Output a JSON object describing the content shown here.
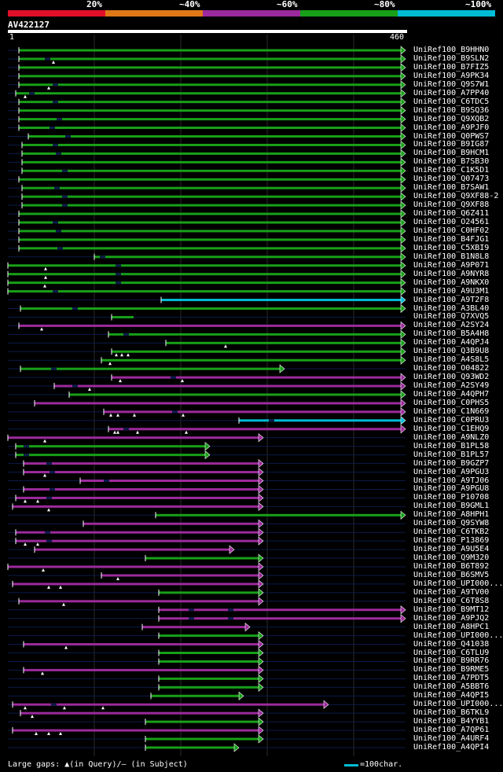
{
  "legend": {
    "labels": [
      "20%",
      "~40%",
      "~60%",
      "~80%",
      "~100%"
    ],
    "colors": [
      "#e0102a",
      "#e07818",
      "#9c2a9c",
      "#18a018",
      "#00bcd4"
    ]
  },
  "query": {
    "id": "AV422127",
    "length": 460,
    "start_label": "1",
    "end_label": "460"
  },
  "footer": {
    "gaps_text": "Large gaps: ▲(in Query)/— (in Subject)",
    "scale_text": "=100char."
  },
  "hits": [
    {
      "label": "UniRef100_B9HHN0",
      "color": "green",
      "start": 24,
      "end": 516,
      "arrow": true,
      "query_gaps": [],
      "subj_gaps": []
    },
    {
      "label": "UniRef100_B9SLN2",
      "color": "green",
      "start": 24,
      "end": 516,
      "arrow": true,
      "query_gaps": [
        68
      ],
      "subj_gaps": [
        60
      ]
    },
    {
      "label": "UniRef100_B7FIZ5",
      "color": "green",
      "start": 24,
      "end": 516,
      "arrow": true,
      "query_gaps": [],
      "subj_gaps": []
    },
    {
      "label": "UniRef100_A9PK34",
      "color": "green",
      "start": 24,
      "end": 516,
      "arrow": true,
      "query_gaps": [],
      "subj_gaps": []
    },
    {
      "label": "UniRef100_Q9S7W1",
      "color": "green",
      "start": 24,
      "end": 516,
      "arrow": true,
      "query_gaps": [
        62
      ],
      "subj_gaps": [
        70
      ]
    },
    {
      "label": "UniRef100_A7PP40",
      "color": "green",
      "start": 20,
      "end": 516,
      "arrow": true,
      "query_gaps": [
        32
      ],
      "subj_gaps": [
        40
      ]
    },
    {
      "label": "UniRef100_C6TDC5",
      "color": "green",
      "start": 24,
      "end": 516,
      "arrow": true,
      "query_gaps": [],
      "subj_gaps": [
        70
      ]
    },
    {
      "label": "UniRef100_B9SQ36",
      "color": "green",
      "start": 24,
      "end": 516,
      "arrow": true,
      "query_gaps": [],
      "subj_gaps": []
    },
    {
      "label": "UniRef100_Q9XQB2",
      "color": "green",
      "start": 24,
      "end": 516,
      "arrow": true,
      "query_gaps": [],
      "subj_gaps": [
        75
      ]
    },
    {
      "label": "UniRef100_A9PJF0",
      "color": "green",
      "start": 24,
      "end": 516,
      "arrow": true,
      "query_gaps": [],
      "subj_gaps": [
        66
      ]
    },
    {
      "label": "UniRef100_Q0PWS7",
      "color": "green",
      "start": 36,
      "end": 516,
      "arrow": true,
      "query_gaps": [],
      "subj_gaps": [
        86
      ]
    },
    {
      "label": "UniRef100_B9IG87",
      "color": "green",
      "start": 28,
      "end": 516,
      "arrow": true,
      "query_gaps": [],
      "subj_gaps": [
        70
      ]
    },
    {
      "label": "UniRef100_B9HCM1",
      "color": "green",
      "start": 28,
      "end": 516,
      "arrow": true,
      "query_gaps": [],
      "subj_gaps": [
        74
      ]
    },
    {
      "label": "UniRef100_B7SB30",
      "color": "green",
      "start": 28,
      "end": 516,
      "arrow": true,
      "query_gaps": [],
      "subj_gaps": []
    },
    {
      "label": "UniRef100_C1K5D1",
      "color": "green",
      "start": 28,
      "end": 516,
      "arrow": true,
      "query_gaps": [],
      "subj_gaps": [
        82
      ]
    },
    {
      "label": "UniRef100_Q07473",
      "color": "green",
      "start": 24,
      "end": 516,
      "arrow": true,
      "query_gaps": [],
      "subj_gaps": []
    },
    {
      "label": "UniRef100_B7SAW1",
      "color": "green",
      "start": 28,
      "end": 516,
      "arrow": true,
      "query_gaps": [],
      "subj_gaps": [
        72
      ]
    },
    {
      "label": "UniRef100_Q9XF88-2",
      "color": "green",
      "start": 28,
      "end": 516,
      "arrow": true,
      "query_gaps": [],
      "subj_gaps": [
        82
      ]
    },
    {
      "label": "UniRef100_Q9XF88",
      "color": "green",
      "start": 28,
      "end": 516,
      "arrow": true,
      "query_gaps": [],
      "subj_gaps": [
        82
      ]
    },
    {
      "label": "UniRef100_Q6Z411",
      "color": "green",
      "start": 24,
      "end": 516,
      "arrow": true,
      "query_gaps": [],
      "subj_gaps": []
    },
    {
      "label": "UniRef100_O24561",
      "color": "green",
      "start": 24,
      "end": 516,
      "arrow": true,
      "query_gaps": [],
      "subj_gaps": [
        70
      ]
    },
    {
      "label": "UniRef100_C0HF02",
      "color": "green",
      "start": 24,
      "end": 516,
      "arrow": true,
      "query_gaps": [],
      "subj_gaps": [
        74
      ]
    },
    {
      "label": "UniRef100_B4FJG1",
      "color": "green",
      "start": 24,
      "end": 516,
      "arrow": true,
      "query_gaps": [],
      "subj_gaps": []
    },
    {
      "label": "UniRef100_C5XBI9",
      "color": "green",
      "start": 24,
      "end": 516,
      "arrow": true,
      "query_gaps": [],
      "subj_gaps": [
        76
      ]
    },
    {
      "label": "UniRef100_B1N8L8",
      "color": "green",
      "start": 120,
      "end": 516,
      "arrow": true,
      "query_gaps": [],
      "subj_gaps": [
        130
      ]
    },
    {
      "label": "UniRef100_A9P071",
      "color": "green",
      "start": 10,
      "end": 516,
      "arrow": true,
      "query_gaps": [
        58
      ],
      "subj_gaps": [
        150
      ]
    },
    {
      "label": "UniRef100_A9NYR8",
      "color": "green",
      "start": 10,
      "end": 516,
      "arrow": true,
      "query_gaps": [
        58
      ],
      "subj_gaps": [
        150
      ]
    },
    {
      "label": "UniRef100_A9NKX0",
      "color": "green",
      "start": 10,
      "end": 516,
      "arrow": true,
      "query_gaps": [
        57
      ],
      "subj_gaps": [
        150
      ]
    },
    {
      "label": "UniRef100_A9U3M1",
      "color": "green",
      "start": 10,
      "end": 516,
      "arrow": true,
      "query_gaps": [],
      "subj_gaps": [
        70
      ]
    },
    {
      "label": "UniRef100_A9T2F8",
      "color": "cyan",
      "start": 205,
      "end": 516,
      "arrow": true,
      "query_gaps": [],
      "subj_gaps": []
    },
    {
      "label": "UniRef100_A3BL40",
      "color": "green",
      "start": 26,
      "end": 516,
      "arrow": true,
      "query_gaps": [],
      "subj_gaps": [
        95
      ]
    },
    {
      "label": "UniRef100_Q7XVQ5",
      "color": "green",
      "start": 142,
      "end": 170,
      "arrow": false,
      "query_gaps": [],
      "subj_gaps": []
    },
    {
      "label": "UniRef100_A2SY24",
      "color": "magenta",
      "start": 24,
      "end": 516,
      "arrow": true,
      "query_gaps": [
        53
      ],
      "subj_gaps": []
    },
    {
      "label": "UniRef100_B5A4H8",
      "color": "green",
      "start": 138,
      "end": 516,
      "arrow": true,
      "query_gaps": [],
      "subj_gaps": [
        160
      ]
    },
    {
      "label": "UniRef100_A4QPJ4",
      "color": "green",
      "start": 211,
      "end": 516,
      "arrow": true,
      "query_gaps": [
        287
      ],
      "subj_gaps": []
    },
    {
      "label": "UniRef100_Q3B9U8",
      "color": "green",
      "start": 142,
      "end": 516,
      "arrow": true,
      "query_gaps": [
        148,
        155,
        163
      ],
      "subj_gaps": []
    },
    {
      "label": "UniRef100_A4S8L5",
      "color": "green",
      "start": 129,
      "end": 516,
      "arrow": true,
      "query_gaps": [
        140
      ],
      "subj_gaps": []
    },
    {
      "label": "UniRef100_O04822",
      "color": "green",
      "start": 26,
      "end": 362,
      "arrow": true,
      "query_gaps": [],
      "subj_gaps": [
        68
      ]
    },
    {
      "label": "UniRef100_Q93WD2",
      "color": "magenta",
      "start": 142,
      "end": 516,
      "arrow": true,
      "query_gaps": [
        153,
        232
      ],
      "subj_gaps": [
        220
      ]
    },
    {
      "label": "UniRef100_A2SY49",
      "color": "magenta",
      "start": 69,
      "end": 516,
      "arrow": true,
      "query_gaps": [
        114
      ],
      "subj_gaps": [
        95
      ]
    },
    {
      "label": "UniRef100_A4QPH7",
      "color": "green",
      "start": 88,
      "end": 516,
      "arrow": true,
      "query_gaps": [],
      "subj_gaps": []
    },
    {
      "label": "UniRef100_C0PHS5",
      "color": "magenta",
      "start": 44,
      "end": 516,
      "arrow": true,
      "query_gaps": [],
      "subj_gaps": []
    },
    {
      "label": "UniRef100_C1N669",
      "color": "magenta",
      "start": 132,
      "end": 516,
      "arrow": true,
      "query_gaps": [
        141,
        150,
        171,
        233
      ],
      "subj_gaps": [
        222
      ]
    },
    {
      "label": "UniRef100_C0PRU3",
      "color": "cyan",
      "start": 304,
      "end": 516,
      "arrow": true,
      "query_gaps": [],
      "subj_gaps": [
        345
      ]
    },
    {
      "label": "UniRef100_C1EHQ9",
      "color": "magenta",
      "start": 138,
      "end": 516,
      "arrow": true,
      "query_gaps": [
        146,
        150,
        175,
        237
      ],
      "subj_gaps": [
        160
      ]
    },
    {
      "label": "UniRef100_A9NLZ0",
      "color": "magenta",
      "start": 10,
      "end": 335,
      "arrow": true,
      "query_gaps": [
        57
      ],
      "subj_gaps": []
    },
    {
      "label": "UniRef100_B1PL58",
      "color": "green",
      "start": 20,
      "end": 267,
      "arrow": true,
      "query_gaps": [],
      "subj_gaps": [
        33
      ]
    },
    {
      "label": "UniRef100_B1PL57",
      "color": "green",
      "start": 20,
      "end": 267,
      "arrow": true,
      "query_gaps": [],
      "subj_gaps": [
        33
      ]
    },
    {
      "label": "UniRef100_B9GZP7",
      "color": "magenta",
      "start": 30,
      "end": 335,
      "arrow": true,
      "query_gaps": [],
      "subj_gaps": [
        62
      ]
    },
    {
      "label": "UniRef100_A9PGU3",
      "color": "magenta",
      "start": 30,
      "end": 335,
      "arrow": true,
      "query_gaps": [
        57
      ],
      "subj_gaps": [
        66
      ]
    },
    {
      "label": "UniRef100_A9TJ06",
      "color": "magenta",
      "start": 102,
      "end": 335,
      "arrow": true,
      "query_gaps": [],
      "subj_gaps": [
        135
      ]
    },
    {
      "label": "UniRef100_A9PGU8",
      "color": "magenta",
      "start": 30,
      "end": 335,
      "arrow": true,
      "query_gaps": [],
      "subj_gaps": [
        66
      ]
    },
    {
      "label": "UniRef100_P10708",
      "color": "magenta",
      "start": 20,
      "end": 335,
      "arrow": true,
      "query_gaps": [
        32,
        48
      ],
      "subj_gaps": [
        62
      ]
    },
    {
      "label": "UniRef100_B9GML1",
      "color": "magenta",
      "start": 16,
      "end": 335,
      "arrow": true,
      "query_gaps": [
        62
      ],
      "subj_gaps": []
    },
    {
      "label": "UniRef100_A8HPH1",
      "color": "green",
      "start": 198,
      "end": 516,
      "arrow": true,
      "query_gaps": [],
      "subj_gaps": []
    },
    {
      "label": "UniRef100_Q9SYW8",
      "color": "magenta",
      "start": 106,
      "end": 335,
      "arrow": true,
      "query_gaps": [],
      "subj_gaps": []
    },
    {
      "label": "UniRef100_C6TKB2",
      "color": "magenta",
      "start": 20,
      "end": 335,
      "arrow": true,
      "query_gaps": [],
      "subj_gaps": [
        60
      ]
    },
    {
      "label": "UniRef100_P13869",
      "color": "magenta",
      "start": 20,
      "end": 335,
      "arrow": true,
      "query_gaps": [
        32,
        48
      ],
      "subj_gaps": [
        62
      ]
    },
    {
      "label": "UniRef100_A9U5E4",
      "color": "magenta",
      "start": 44,
      "end": 298,
      "arrow": true,
      "query_gaps": [],
      "subj_gaps": []
    },
    {
      "label": "UniRef100_Q9M320",
      "color": "green",
      "start": 185,
      "end": 335,
      "arrow": true,
      "query_gaps": [],
      "subj_gaps": []
    },
    {
      "label": "UniRef100_B6T892",
      "color": "magenta",
      "start": 10,
      "end": 335,
      "arrow": true,
      "query_gaps": [
        55
      ],
      "subj_gaps": []
    },
    {
      "label": "UniRef100_B6SMV5",
      "color": "magenta",
      "start": 129,
      "end": 335,
      "arrow": true,
      "query_gaps": [
        150
      ],
      "subj_gaps": []
    },
    {
      "label": "UniRef100_UPI000...",
      "color": "magenta",
      "start": 16,
      "end": 335,
      "arrow": true,
      "query_gaps": [
        62,
        77
      ],
      "subj_gaps": []
    },
    {
      "label": "UniRef100_A9TV00",
      "color": "green",
      "start": 202,
      "end": 335,
      "arrow": true,
      "query_gaps": [],
      "subj_gaps": []
    },
    {
      "label": "UniRef100_C6T8S8",
      "color": "magenta",
      "start": 24,
      "end": 335,
      "arrow": true,
      "query_gaps": [
        81
      ],
      "subj_gaps": []
    },
    {
      "label": "UniRef100_B9MT12",
      "color": "magenta",
      "start": 202,
      "end": 516,
      "arrow": true,
      "query_gaps": [],
      "subj_gaps": [
        243,
        293
      ]
    },
    {
      "label": "UniRef100_A9PJQ2",
      "color": "magenta",
      "start": 202,
      "end": 516,
      "arrow": true,
      "query_gaps": [],
      "subj_gaps": [
        243,
        293
      ]
    },
    {
      "label": "UniRef100_A8HPC1",
      "color": "magenta",
      "start": 181,
      "end": 318,
      "arrow": true,
      "query_gaps": [],
      "subj_gaps": []
    },
    {
      "label": "UniRef100_UPI000...",
      "color": "green",
      "start": 202,
      "end": 335,
      "arrow": true,
      "query_gaps": [],
      "subj_gaps": []
    },
    {
      "label": "UniRef100_Q41038",
      "color": "magenta",
      "start": 30,
      "end": 335,
      "arrow": true,
      "query_gaps": [
        84
      ],
      "subj_gaps": []
    },
    {
      "label": "UniRef100_C6TLU9",
      "color": "green",
      "start": 202,
      "end": 335,
      "arrow": true,
      "query_gaps": [],
      "subj_gaps": []
    },
    {
      "label": "UniRef100_B9RR76",
      "color": "green",
      "start": 202,
      "end": 335,
      "arrow": true,
      "query_gaps": [],
      "subj_gaps": []
    },
    {
      "label": "UniRef100_B9RME5",
      "color": "magenta",
      "start": 30,
      "end": 335,
      "arrow": true,
      "query_gaps": [
        54
      ],
      "subj_gaps": []
    },
    {
      "label": "UniRef100_A7PDT5",
      "color": "green",
      "start": 202,
      "end": 335,
      "arrow": true,
      "query_gaps": [],
      "subj_gaps": []
    },
    {
      "label": "UniRef100_A5BBT6",
      "color": "green",
      "start": 202,
      "end": 335,
      "arrow": true,
      "query_gaps": [],
      "subj_gaps": []
    },
    {
      "label": "UniRef100_A4QPI5",
      "color": "green",
      "start": 192,
      "end": 310,
      "arrow": true,
      "query_gaps": [],
      "subj_gaps": []
    },
    {
      "label": "UniRef100_UPI000...",
      "color": "magenta",
      "start": 16,
      "end": 418,
      "arrow": true,
      "query_gaps": [
        32,
        82,
        131
      ],
      "subj_gaps": [
        68
      ]
    },
    {
      "label": "UniRef100_B6TKL9",
      "color": "magenta",
      "start": 26,
      "end": 335,
      "arrow": true,
      "query_gaps": [
        41
      ],
      "subj_gaps": []
    },
    {
      "label": "UniRef100_B4YYB1",
      "color": "green",
      "start": 185,
      "end": 335,
      "arrow": true,
      "query_gaps": [],
      "subj_gaps": []
    },
    {
      "label": "UniRef100_A7QP61",
      "color": "magenta",
      "start": 16,
      "end": 335,
      "arrow": true,
      "query_gaps": [
        46,
        62,
        77
      ],
      "subj_gaps": []
    },
    {
      "label": "UniRef100_A4URF4",
      "color": "green",
      "start": 185,
      "end": 335,
      "arrow": true,
      "query_gaps": [],
      "subj_gaps": []
    },
    {
      "label": "UniRef100_A4QPI4",
      "color": "green",
      "start": 185,
      "end": 304,
      "arrow": true,
      "query_gaps": [],
      "subj_gaps": []
    }
  ]
}
